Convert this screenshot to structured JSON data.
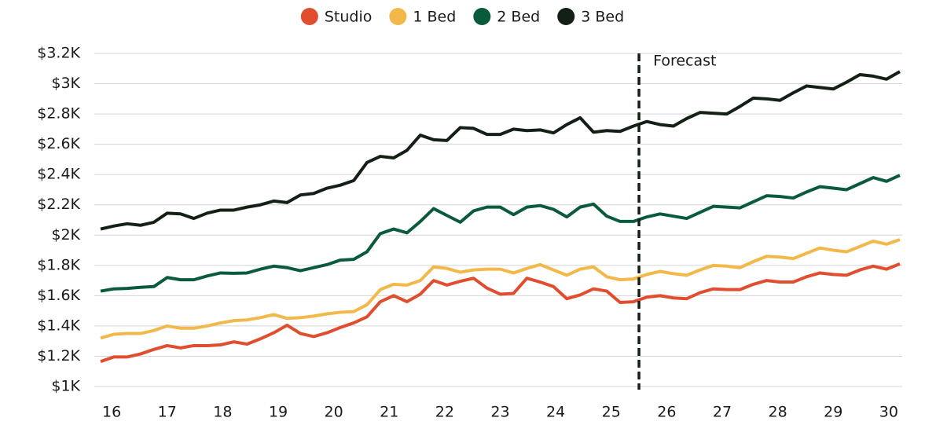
{
  "chart_data": {
    "type": "line",
    "x": [
      15.8,
      16.04,
      16.28,
      16.52,
      16.76,
      17.0,
      17.24,
      17.48,
      17.72,
      17.96,
      18.2,
      18.44,
      18.68,
      18.92,
      19.16,
      19.4,
      19.64,
      19.88,
      20.12,
      20.36,
      20.6,
      20.84,
      21.08,
      21.32,
      21.56,
      21.8,
      22.04,
      22.28,
      22.52,
      22.76,
      23.0,
      23.24,
      23.48,
      23.72,
      23.96,
      24.2,
      24.44,
      24.68,
      24.92,
      25.16,
      25.4,
      25.64,
      25.88,
      26.12,
      26.36,
      26.6,
      26.84,
      27.08,
      27.32,
      27.56,
      27.8,
      28.04,
      28.28,
      28.52,
      28.76,
      29.0,
      29.24,
      29.48,
      29.72,
      29.96,
      30.2
    ],
    "series": [
      {
        "name": "Studio",
        "color": "#e04e2f",
        "values": [
          1165,
          1195,
          1195,
          1215,
          1245,
          1270,
          1255,
          1270,
          1270,
          1275,
          1295,
          1280,
          1315,
          1355,
          1405,
          1350,
          1330,
          1355,
          1390,
          1420,
          1460,
          1560,
          1600,
          1560,
          1610,
          1700,
          1670,
          1695,
          1715,
          1650,
          1610,
          1615,
          1715,
          1690,
          1660,
          1580,
          1605,
          1645,
          1630,
          1555,
          1560,
          1590,
          1600,
          1585,
          1580,
          1620,
          1645,
          1640,
          1640,
          1675,
          1700,
          1690,
          1690,
          1725,
          1750,
          1740,
          1735,
          1770,
          1795,
          1775,
          1810
        ]
      },
      {
        "name": "1 Bed",
        "color": "#f2b94a",
        "values": [
          1320,
          1345,
          1350,
          1350,
          1370,
          1400,
          1385,
          1385,
          1400,
          1420,
          1435,
          1440,
          1455,
          1475,
          1450,
          1455,
          1465,
          1480,
          1490,
          1495,
          1540,
          1640,
          1675,
          1670,
          1700,
          1790,
          1780,
          1755,
          1770,
          1775,
          1775,
          1750,
          1780,
          1805,
          1770,
          1735,
          1775,
          1790,
          1725,
          1705,
          1710,
          1740,
          1760,
          1745,
          1735,
          1770,
          1800,
          1795,
          1785,
          1825,
          1860,
          1855,
          1845,
          1880,
          1915,
          1900,
          1890,
          1925,
          1960,
          1940,
          1970
        ]
      },
      {
        "name": "2 Bed",
        "color": "#0a5a3c",
        "values": [
          1630,
          1645,
          1648,
          1655,
          1660,
          1720,
          1705,
          1705,
          1730,
          1750,
          1748,
          1750,
          1775,
          1795,
          1785,
          1765,
          1785,
          1805,
          1835,
          1840,
          1890,
          2010,
          2040,
          2015,
          2090,
          2175,
          2130,
          2085,
          2160,
          2185,
          2185,
          2135,
          2185,
          2195,
          2170,
          2120,
          2185,
          2205,
          2125,
          2090,
          2090,
          2120,
          2140,
          2125,
          2110,
          2150,
          2190,
          2185,
          2180,
          2220,
          2260,
          2255,
          2245,
          2285,
          2320,
          2310,
          2300,
          2340,
          2380,
          2355,
          2395
        ]
      },
      {
        "name": "3 Bed",
        "color": "#141f16",
        "values": [
          2040,
          2060,
          2075,
          2065,
          2085,
          2145,
          2140,
          2110,
          2145,
          2165,
          2165,
          2185,
          2200,
          2225,
          2215,
          2265,
          2275,
          2310,
          2330,
          2360,
          2480,
          2520,
          2510,
          2560,
          2660,
          2630,
          2625,
          2710,
          2705,
          2665,
          2665,
          2700,
          2690,
          2695,
          2675,
          2730,
          2775,
          2680,
          2690,
          2685,
          2720,
          2750,
          2730,
          2720,
          2770,
          2810,
          2805,
          2800,
          2850,
          2905,
          2900,
          2890,
          2940,
          2985,
          2975,
          2965,
          3010,
          3060,
          3050,
          3030,
          3080
        ]
      }
    ],
    "xlim": [
      15.8,
      30.2
    ],
    "xticks": [
      16,
      17,
      18,
      19,
      20,
      21,
      22,
      23,
      24,
      25,
      26,
      27,
      28,
      29,
      30
    ],
    "ylim": [
      1000,
      3200
    ],
    "yticks": [
      {
        "value": 1000,
        "label": "$1K"
      },
      {
        "value": 1200,
        "label": "$1.2K"
      },
      {
        "value": 1400,
        "label": "$1.4K"
      },
      {
        "value": 1600,
        "label": "$1.6K"
      },
      {
        "value": 1800,
        "label": "$1.8K"
      },
      {
        "value": 2000,
        "label": "$2K"
      },
      {
        "value": 2200,
        "label": "$2.2K"
      },
      {
        "value": 2400,
        "label": "$2.4K"
      },
      {
        "value": 2600,
        "label": "$2.6K"
      },
      {
        "value": 2800,
        "label": "$2.8K"
      },
      {
        "value": 3000,
        "label": "$3K"
      },
      {
        "value": 3200,
        "label": "$3.2K"
      }
    ],
    "grid": true,
    "legend": "top",
    "forecast": {
      "x": 25.5,
      "label": "Forecast"
    }
  }
}
